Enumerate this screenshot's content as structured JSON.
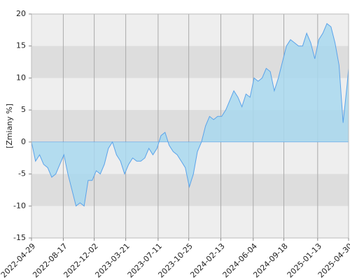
{
  "chart_data": {
    "type": "area",
    "y_label": "[Zmiany %]",
    "x": [
      "2022-04-29",
      "2022-05-13",
      "2022-05-27",
      "2022-06-10",
      "2022-06-24",
      "2022-07-08",
      "2022-07-22",
      "2022-08-05",
      "2022-08-19",
      "2022-09-02",
      "2022-09-16",
      "2022-09-30",
      "2022-10-14",
      "2022-10-28",
      "2022-11-11",
      "2022-11-25",
      "2022-12-09",
      "2022-12-23",
      "2023-01-06",
      "2023-01-20",
      "2023-02-03",
      "2023-02-17",
      "2023-03-03",
      "2023-03-17",
      "2023-03-31",
      "2023-04-14",
      "2023-04-28",
      "2023-05-12",
      "2023-05-26",
      "2023-06-09",
      "2023-06-23",
      "2023-07-07",
      "2023-07-21",
      "2023-08-04",
      "2023-08-18",
      "2023-09-01",
      "2023-09-15",
      "2023-09-29",
      "2023-10-13",
      "2023-10-27",
      "2023-11-10",
      "2023-11-24",
      "2023-12-08",
      "2023-12-22",
      "2024-01-05",
      "2024-01-19",
      "2024-02-02",
      "2024-02-16",
      "2024-03-01",
      "2024-03-15",
      "2024-03-29",
      "2024-04-12",
      "2024-04-26",
      "2024-05-10",
      "2024-05-24",
      "2024-06-07",
      "2024-06-21",
      "2024-07-05",
      "2024-07-19",
      "2024-08-02",
      "2024-08-16",
      "2024-08-30",
      "2024-09-13",
      "2024-09-27",
      "2024-10-11",
      "2024-10-25",
      "2024-11-08",
      "2024-11-22",
      "2024-12-06",
      "2024-12-20",
      "2025-01-03",
      "2025-01-17",
      "2025-01-31",
      "2025-02-14",
      "2025-02-28",
      "2025-03-14",
      "2025-03-28",
      "2025-04-11",
      "2025-04-25",
      "2025-04-30"
    ],
    "series": [
      {
        "color": "#5aa3ea",
        "fill": "#a8d8ee",
        "values": [
          0,
          -3,
          -2,
          -3.5,
          -4,
          -5.5,
          -5,
          -3.5,
          -2,
          -5,
          -7.5,
          -10,
          -9.5,
          -10,
          -6,
          -6,
          -4.5,
          -5,
          -3.5,
          -1,
          0,
          -2,
          -3,
          -5,
          -3.5,
          -2.5,
          -3,
          -3,
          -2.5,
          -1,
          -2,
          -1,
          1,
          1.5,
          -0.5,
          -1.5,
          -2,
          -3,
          -4,
          -7,
          -5,
          -1.5,
          0,
          2.5,
          4,
          3.5,
          4,
          4,
          5,
          6.5,
          8,
          7,
          5.5,
          7.5,
          7,
          10,
          9.5,
          10,
          11.5,
          11,
          8,
          10,
          12.5,
          15,
          16,
          15.5,
          15,
          15,
          17,
          15.5,
          13,
          16,
          17,
          18.5,
          18,
          15.5,
          12,
          3,
          9,
          11.5
        ]
      }
    ],
    "xlim": [
      "2022-04-29",
      "2025-04-30"
    ],
    "xticks": [
      "2022-04-29",
      "2022-08-17",
      "2022-12-02",
      "2023-03-21",
      "2023-07-11",
      "2023-10-25",
      "2024-02-13",
      "2024-06-04",
      "2024-09-18",
      "2025-01-13",
      "2025-04-30"
    ],
    "ylim": [
      -15,
      20
    ],
    "yticks": [
      -15,
      -10,
      -5,
      0,
      5,
      10,
      15,
      20
    ],
    "grid": true
  }
}
